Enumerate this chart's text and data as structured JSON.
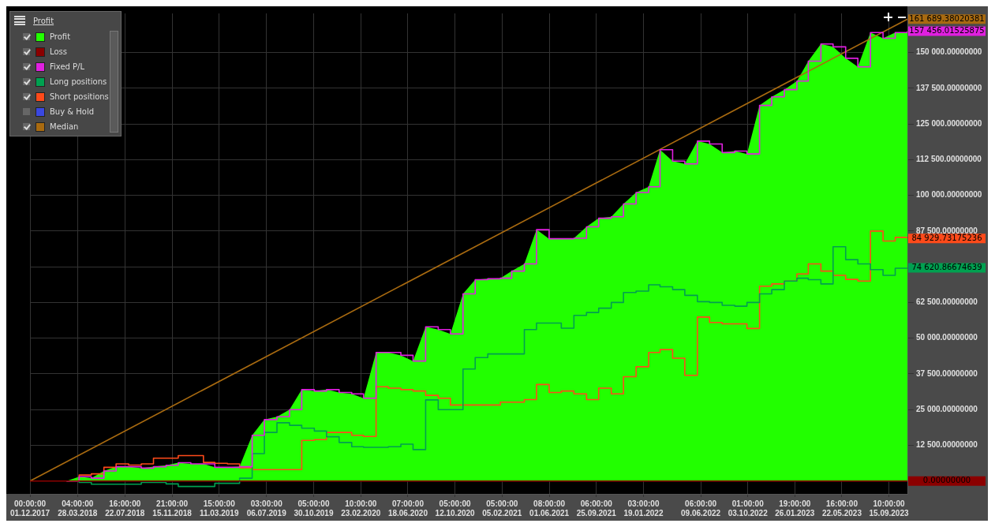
{
  "chart_data": {
    "type": "area",
    "legend_title": "Profit",
    "legend": "top left",
    "grid": true,
    "x": [
      "2017-12",
      "2018-01",
      "2018-02",
      "2018-03",
      "2018-04",
      "2018-05",
      "2018-06",
      "2018-07",
      "2018-08",
      "2018-09",
      "2018-10",
      "2018-11",
      "2018-12",
      "2019-01",
      "2019-02",
      "2019-03",
      "2019-04",
      "2019-05",
      "2019-06",
      "2019-07",
      "2019-08",
      "2019-09",
      "2019-10",
      "2019-11",
      "2019-12",
      "2020-01",
      "2020-02",
      "2020-03",
      "2020-04",
      "2020-05",
      "2020-06",
      "2020-07",
      "2020-08",
      "2020-09",
      "2020-10",
      "2020-11",
      "2020-12",
      "2021-01",
      "2021-02",
      "2021-03",
      "2021-04",
      "2021-05",
      "2021-06",
      "2021-07",
      "2021-08",
      "2021-09",
      "2021-10",
      "2021-11",
      "2021-12",
      "2022-01",
      "2022-02",
      "2022-03",
      "2022-04",
      "2022-05",
      "2022-06",
      "2022-07",
      "2022-08",
      "2022-09",
      "2022-10",
      "2022-11",
      "2022-12",
      "2023-01",
      "2023-02",
      "2023-03",
      "2023-04",
      "2023-05",
      "2023-06",
      "2023-07",
      "2023-08",
      "2023-09",
      "2023-10",
      "2023-10-31"
    ],
    "series": [
      {
        "name": "Profit",
        "type": "area",
        "color": "#22ff00",
        "values": [
          0,
          0,
          0,
          0,
          1500,
          1000,
          3500,
          5000,
          5000,
          4500,
          5000,
          5500,
          6400,
          6000,
          6000,
          4800,
          4800,
          5000,
          16000,
          21500,
          22500,
          25000,
          32000,
          31500,
          32000,
          31000,
          30500,
          29000,
          45000,
          45000,
          44000,
          42000,
          54000,
          53000,
          51500,
          65500,
          70500,
          70800,
          71000,
          73500,
          76000,
          88000,
          84800,
          84800,
          85000,
          89000,
          92000,
          92500,
          97000,
          101000,
          103000,
          116000,
          112000,
          111000,
          119000,
          118000,
          115000,
          115500,
          114500,
          131500,
          134500,
          137000,
          140000,
          147000,
          153000,
          152000,
          148000,
          145000,
          157000,
          155000,
          157000,
          157000
        ]
      },
      {
        "name": "Loss",
        "type": "line",
        "color": "#8b0000",
        "x": [
          "2017-12",
          "2023-10-31"
        ],
        "values": [
          0,
          0
        ]
      },
      {
        "name": "Fixed P/L",
        "type": "step",
        "color": "#e020e0",
        "values": [
          null,
          null,
          null,
          0,
          1500,
          1000,
          3500,
          5000,
          5000,
          4500,
          5000,
          5500,
          6400,
          6000,
          6000,
          4800,
          4800,
          5000,
          16000,
          21500,
          22500,
          25000,
          32000,
          31500,
          32000,
          31000,
          30500,
          29000,
          45000,
          45000,
          44000,
          42000,
          54000,
          53000,
          51500,
          65500,
          70500,
          70800,
          71000,
          73500,
          76000,
          88000,
          84800,
          84800,
          85000,
          89000,
          92000,
          92500,
          97000,
          101000,
          103000,
          116000,
          112000,
          111000,
          119000,
          118000,
          115000,
          115500,
          114500,
          131500,
          134500,
          137000,
          140000,
          147000,
          153000,
          152000,
          148000,
          145000,
          157000,
          155000,
          157000,
          157456.01525875
        ]
      },
      {
        "name": "Long positions",
        "type": "step",
        "color": "#00a050",
        "values": [
          null,
          null,
          null,
          0,
          -500,
          -1100,
          -1100,
          -1100,
          -1100,
          -500,
          -500,
          -1000,
          -1900,
          -1900,
          -1900,
          -800,
          -800,
          1000,
          9600,
          17000,
          20400,
          19500,
          18500,
          17500,
          15500,
          13500,
          12000,
          11800,
          11800,
          12000,
          12900,
          11000,
          28400,
          25000,
          25000,
          39200,
          43200,
          44500,
          44500,
          44500,
          53000,
          55300,
          55300,
          53500,
          58000,
          59000,
          60500,
          62500,
          66000,
          66500,
          68700,
          68000,
          67000,
          65000,
          62800,
          62500,
          61500,
          61200,
          62500,
          65500,
          67000,
          70000,
          71000,
          70500,
          69000,
          82000,
          77500,
          76000,
          74000,
          72000,
          74500,
          74620.86674639
        ]
      },
      {
        "name": "Short positions",
        "type": "step",
        "color": "#ff4a1a",
        "values": [
          null,
          null,
          null,
          0,
          2100,
          2500,
          4800,
          6000,
          5600,
          6000,
          8000,
          8000,
          8900,
          8900,
          6500,
          6200,
          6000,
          4600,
          4000,
          4000,
          4000,
          4000,
          14200,
          14500,
          17000,
          17000,
          16000,
          15600,
          33000,
          32500,
          32000,
          31500,
          30000,
          29000,
          26600,
          26600,
          26600,
          26600,
          27600,
          27600,
          28500,
          33800,
          31000,
          31500,
          30500,
          28500,
          32500,
          30500,
          36500,
          40000,
          45000,
          46000,
          43000,
          37000,
          57400,
          55500,
          55000,
          55000,
          53400,
          68200,
          69000,
          70000,
          72500,
          76000,
          73500,
          72000,
          70600,
          70000,
          87500,
          84000,
          85300,
          84929.73175236
        ]
      },
      {
        "name": "Buy & Hold",
        "type": "line",
        "color": "#3a48e0",
        "values": [
          null,
          null,
          null,
          null,
          null,
          null,
          null,
          null,
          null,
          null,
          null,
          null,
          null,
          null,
          null,
          null,
          null,
          null,
          null,
          null,
          null,
          null,
          null,
          null,
          null,
          null,
          null,
          null,
          null,
          null,
          null,
          null,
          null,
          null,
          null,
          null,
          null,
          null,
          null,
          null,
          null,
          null,
          null,
          null,
          null,
          null,
          null,
          null,
          null,
          null,
          null,
          null,
          null,
          null,
          null,
          null,
          null,
          null,
          null,
          null,
          null,
          null,
          null,
          null,
          null,
          null,
          null,
          null,
          null,
          null,
          null,
          null
        ]
      },
      {
        "name": "Median",
        "type": "line",
        "color": "#a86a10",
        "x": [
          "2017-12",
          "2023-10-31"
        ],
        "values": [
          0,
          161689.38020381
        ]
      }
    ],
    "xlim": [
      "2017-12-01",
      "2023-10-31"
    ],
    "xticks": [
      {
        "value": "2017-12-01T00:00",
        "label": "00:00:00 01.12.2017"
      },
      {
        "value": "2018-03-28T04:00",
        "label": "04:00:00 28.03.2018"
      },
      {
        "value": "2018-07-22T16:00",
        "label": "16:00:00 22.07.2018"
      },
      {
        "value": "2018-11-15T21:00",
        "label": "21:00:00 15.11.2018"
      },
      {
        "value": "2019-03-11T15:00",
        "label": "15:00:00 11.03.2019"
      },
      {
        "value": "2019-07-06T03:00",
        "label": "03:00:00 06.07.2019"
      },
      {
        "value": "2019-10-30T05:00",
        "label": "05:00:00 30.10.2019"
      },
      {
        "value": "2020-02-23T10:00",
        "label": "10:00:00 23.02.2020"
      },
      {
        "value": "2020-06-18T07:00",
        "label": "07:00:00 18.06.2020"
      },
      {
        "value": "2020-10-12T05:00",
        "label": "05:00:00 12.10.2020"
      },
      {
        "value": "2021-02-05T05:00",
        "label": "05:00:00 05.02.2021"
      },
      {
        "value": "2021-06-01T08:00",
        "label": "08:00:00 01.06.2021"
      },
      {
        "value": "2021-09-25T06:00",
        "label": "06:00:00 25.09.2021"
      },
      {
        "value": "2022-01-19T03:00",
        "label": "03:00:00 19.01.2022"
      },
      {
        "value": "2022-06-09T06:00",
        "label": "06:00:00 09.06.2022"
      },
      {
        "value": "2022-10-03T01:00",
        "label": "01:00:00 03.10.2022"
      },
      {
        "value": "2023-01-26T19:00",
        "label": "19:00:00 26.01.2023"
      },
      {
        "value": "2023-05-22T16:00",
        "label": "16:00:00 22.05.2023"
      },
      {
        "value": "2023-09-15T10:00",
        "label": "10:00:00 15.09.2023"
      }
    ],
    "ylim": [
      -4500,
      163700
    ],
    "yticks": [
      {
        "value": 12500,
        "label": "12 500.00000000"
      },
      {
        "value": 25000,
        "label": "25 000.00000000"
      },
      {
        "value": 37500,
        "label": "37 500.00000000"
      },
      {
        "value": 50000,
        "label": "50 000.00000000"
      },
      {
        "value": 62500,
        "label": "62 500.00000000"
      },
      {
        "value": 75000,
        "label": null
      },
      {
        "value": 87500,
        "label": "87 500.00000000"
      },
      {
        "value": 100000,
        "label": "100 000.00000000"
      },
      {
        "value": 112500,
        "label": "112 500.00000000"
      },
      {
        "value": 125000,
        "label": "125 000.00000000"
      },
      {
        "value": 137500,
        "label": "137 500.00000000"
      },
      {
        "value": 150000,
        "label": "150 000.00000000"
      }
    ],
    "annotations": [
      {
        "text": "161 689.38020381",
        "x": "2023-10-31",
        "y": 161689.38020381
      },
      {
        "text": "157 456.01525875",
        "x": "2023-10-31",
        "y": 157456.01525875
      },
      {
        "text": "84 929.73175236",
        "x": "2023-10-31",
        "y": 84929.73175236
      },
      {
        "text": "74 620.86674639",
        "x": "2023-10-31",
        "y": 74620.86674639
      },
      {
        "text": "0.00000000",
        "x": "2023-10-31",
        "y": 0
      }
    ]
  }
}
